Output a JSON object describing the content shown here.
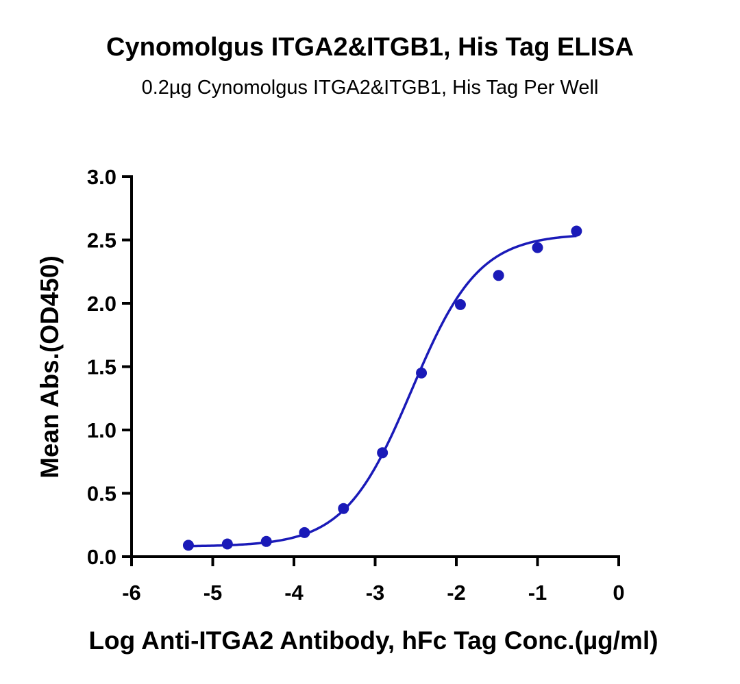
{
  "chart_data": {
    "type": "scatter",
    "title": "Cynomolgus ITGA2&ITGB1, His Tag ELISA",
    "subtitle": "0.2µg Cynomolgus ITGA2&ITGB1, His Tag Per Well",
    "xlabel": "Log Anti-ITGA2 Antibody, hFc Tag Conc.(µg/ml)",
    "ylabel": "Mean Abs.(OD450)",
    "xlim": [
      -6,
      0
    ],
    "ylim": [
      0,
      3.0
    ],
    "xticks": [
      -6,
      -5,
      -4,
      -3,
      -2,
      -1,
      0
    ],
    "xtick_labels": [
      "-6",
      "-5",
      "-4",
      "-3",
      "-2",
      "-1",
      "0"
    ],
    "yticks": [
      0,
      0.5,
      1.0,
      1.5,
      2.0,
      2.5,
      3.0
    ],
    "ytick_labels": [
      "0.0",
      "0.5",
      "1.0",
      "1.5",
      "2.0",
      "2.5",
      "3.0"
    ],
    "grid": false,
    "legend": "none",
    "color": "#1a1ab8",
    "series": [
      {
        "x": [
          -5.3,
          -4.82,
          -4.34,
          -3.87,
          -3.39,
          -2.91,
          -2.43,
          -1.95,
          -1.48,
          -1.0,
          -0.52
        ],
        "y": [
          0.09,
          0.1,
          0.12,
          0.19,
          0.38,
          0.82,
          1.45,
          1.99,
          2.22,
          2.44,
          2.57
        ],
        "fit": "4PL",
        "fit_params": {
          "bottom": 0.08,
          "top": 2.55,
          "logEC50": -2.55,
          "hill": 1.05
        }
      }
    ]
  }
}
